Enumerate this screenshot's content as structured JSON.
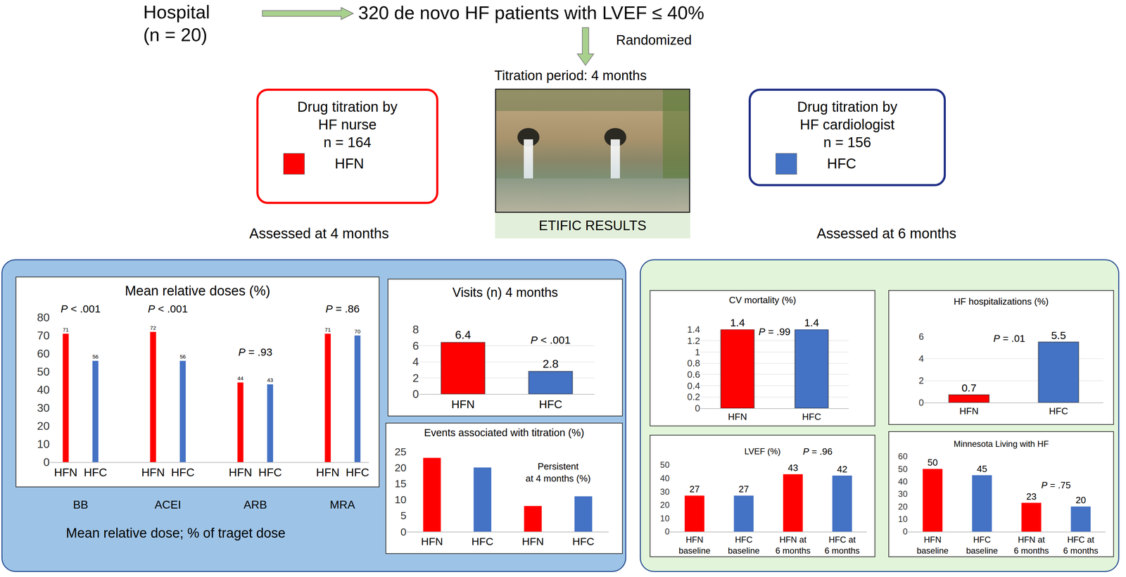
{
  "diagram": {
    "header": {
      "site": [
        "Hospital",
        "(n = 20)"
      ],
      "population": "320 de novo HF patients with LVEF ≤ 40%",
      "step": "Randomized",
      "period": "Titration period: 4 months"
    },
    "arms": [
      {
        "lines": [
          "Drug titration by",
          "HF nurse",
          "n = 164"
        ],
        "key": "HFN",
        "color": "#ff0000"
      },
      {
        "lines": [
          "Drug titration by",
          "HF cardiologist",
          "n = 156"
        ],
        "key": "HFC",
        "color": "#4472c4"
      }
    ],
    "results_label": "ETIFIC RESULTS",
    "panels": [
      {
        "heading": "Assessed at 4 months",
        "footnote": "Mean relative dose; % of traget dose"
      },
      {
        "heading": "Assessed at 6 months"
      }
    ]
  },
  "chart_data": [
    {
      "type": "bar",
      "title": "Mean relative doses (%)",
      "categories": [
        "BB",
        "ACEI",
        "ARB",
        "MRA"
      ],
      "series": [
        {
          "name": "HFN",
          "color": "#ff0000",
          "values": [
            71,
            72,
            44,
            71
          ]
        },
        {
          "name": "HFC",
          "color": "#4472c4",
          "values": [
            56,
            56,
            43,
            70
          ]
        }
      ],
      "annotations": [
        "P < .001",
        "P < .001",
        "P = .93",
        "P = .86"
      ],
      "ylim": [
        0,
        80
      ],
      "yticks": [
        0,
        10,
        20,
        30,
        40,
        50,
        60,
        70,
        80
      ],
      "grid": false,
      "data_labels": true
    },
    {
      "type": "bar",
      "title": "Visits (n) 4 months",
      "categories": [
        "HFN",
        "HFC"
      ],
      "values": [
        6.4,
        2.8
      ],
      "colors": [
        "#ff0000",
        "#4472c4"
      ],
      "annotations": [
        "P < .001"
      ],
      "ylim": [
        0,
        8
      ],
      "yticks": [
        0,
        2,
        4,
        6,
        8
      ],
      "grid": true,
      "data_labels": true
    },
    {
      "type": "bar",
      "title": "Events associated with titration (%)",
      "categories": [
        "HFN",
        "HFC",
        "HFN",
        "HFC"
      ],
      "values": [
        23,
        20,
        8,
        11
      ],
      "colors": [
        "#ff0000",
        "#4472c4",
        "#ff0000",
        "#4472c4"
      ],
      "annotations": [
        "Persistent at 4 months (%)"
      ],
      "ylim": [
        0,
        25
      ],
      "yticks": [
        0,
        5,
        10,
        15,
        20,
        25
      ],
      "grid": false,
      "data_labels": false
    },
    {
      "type": "bar",
      "title": "CV mortality (%)",
      "categories": [
        "HFN",
        "HFC"
      ],
      "values": [
        1.4,
        1.4
      ],
      "colors": [
        "#ff0000",
        "#4472c4"
      ],
      "annotations": [
        "P = .99"
      ],
      "ylim": [
        0,
        1.4
      ],
      "yticks": [
        0,
        0.2,
        0.4,
        0.6,
        0.8,
        1,
        1.2,
        1.4
      ],
      "grid": true,
      "data_labels": true
    },
    {
      "type": "bar",
      "title": "HF hospitalizations (%)",
      "categories": [
        "HFN",
        "HFC"
      ],
      "values": [
        0.7,
        5.5
      ],
      "colors": [
        "#ff0000",
        "#4472c4"
      ],
      "annotations": [
        "P = .01"
      ],
      "ylim": [
        0,
        6
      ],
      "yticks": [
        0,
        2,
        4,
        6
      ],
      "grid": true,
      "data_labels": true
    },
    {
      "type": "bar",
      "title": "LVEF (%)",
      "categories": [
        "HFN baseline",
        "HFC baseline",
        "HFN at 6 months",
        "HFC at 6 months"
      ],
      "values": [
        27,
        27,
        43,
        42
      ],
      "colors": [
        "#ff0000",
        "#4472c4",
        "#ff0000",
        "#4472c4"
      ],
      "annotations": [
        "P = .96"
      ],
      "ylim": [
        0,
        50
      ],
      "yticks": [
        0,
        10,
        20,
        30,
        40,
        50
      ],
      "grid": false,
      "data_labels": true
    },
    {
      "type": "bar",
      "title": "Minnesota Living with HF",
      "categories": [
        "HFN baseline",
        "HFC baseline",
        "HFN at 6 months",
        "HFC at 6 months"
      ],
      "values": [
        50,
        45,
        23,
        20
      ],
      "colors": [
        "#ff0000",
        "#4472c4",
        "#ff0000",
        "#4472c4"
      ],
      "annotations": [
        "P = .75"
      ],
      "ylim": [
        0,
        60
      ],
      "yticks": [
        0,
        10,
        20,
        30,
        40,
        50,
        60
      ],
      "grid": false,
      "data_labels": true
    }
  ]
}
